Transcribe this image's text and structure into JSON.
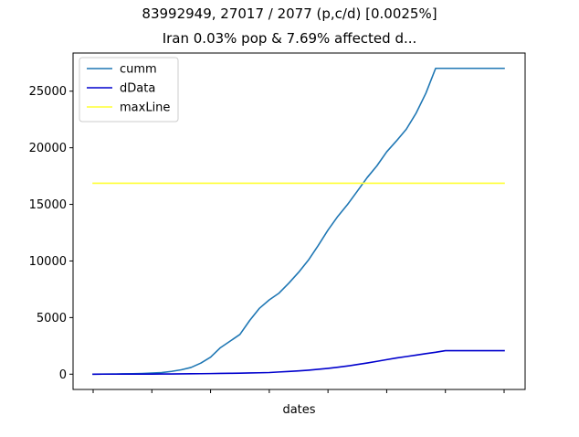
{
  "chart_data": {
    "type": "line",
    "title": "83992949, 27017 / 2077 (p,c/d) [0.0025%]",
    "subtitle": "Iran 0.03% pop & 7.69% affected d...",
    "xlabel": "dates",
    "ylabel": "",
    "ylim": [
      -1350,
      28370
    ],
    "y_ticks": [
      0,
      5000,
      10000,
      15000,
      20000,
      25000
    ],
    "x_tick_count": 8,
    "grid": false,
    "legend_position": "upper-left",
    "x": [
      0,
      1,
      2,
      3,
      4,
      5,
      6,
      7,
      8,
      9,
      10,
      11,
      12,
      13,
      14,
      15,
      16,
      17,
      18,
      19,
      20,
      21,
      22,
      23,
      24,
      25,
      26,
      27,
      28,
      29,
      30,
      31,
      32,
      33,
      34,
      35,
      36,
      37,
      38,
      39,
      40,
      41,
      42
    ],
    "series": [
      {
        "name": "cumm",
        "color": "#1f77b4",
        "values": [
          0,
          5,
          18,
          28,
          43,
          61,
          95,
          139,
          245,
          388,
          593,
          978,
          1501,
          2336,
          2922,
          3513,
          4747,
          5823,
          6566,
          7161,
          8042,
          9000,
          10075,
          11364,
          12729,
          13938,
          14991,
          16169,
          17361,
          18407,
          19644,
          20610,
          21638,
          23049,
          24811,
          27017,
          27017,
          27017,
          27017,
          27017,
          27017,
          27017,
          27017
        ]
      },
      {
        "name": "dData",
        "color": "#0000cd",
        "values": [
          0,
          2,
          2,
          4,
          5,
          8,
          12,
          15,
          19,
          26,
          34,
          43,
          54,
          66,
          77,
          92,
          107,
          124,
          145,
          194,
          237,
          291,
          354,
          429,
          514,
          611,
          724,
          853,
          988,
          1135,
          1284,
          1433,
          1556,
          1685,
          1812,
          1934,
          2077,
          2077,
          2077,
          2077,
          2077,
          2077,
          2077
        ]
      },
      {
        "name": "maxLine",
        "color": "#ffff33",
        "values": [
          16867,
          16867,
          16867,
          16867,
          16867,
          16867,
          16867,
          16867,
          16867,
          16867,
          16867,
          16867,
          16867,
          16867,
          16867,
          16867,
          16867,
          16867,
          16867,
          16867,
          16867,
          16867,
          16867,
          16867,
          16867,
          16867,
          16867,
          16867,
          16867,
          16867,
          16867,
          16867,
          16867,
          16867,
          16867,
          16867,
          16867,
          16867,
          16867,
          16867,
          16867,
          16867,
          16867
        ]
      }
    ]
  }
}
